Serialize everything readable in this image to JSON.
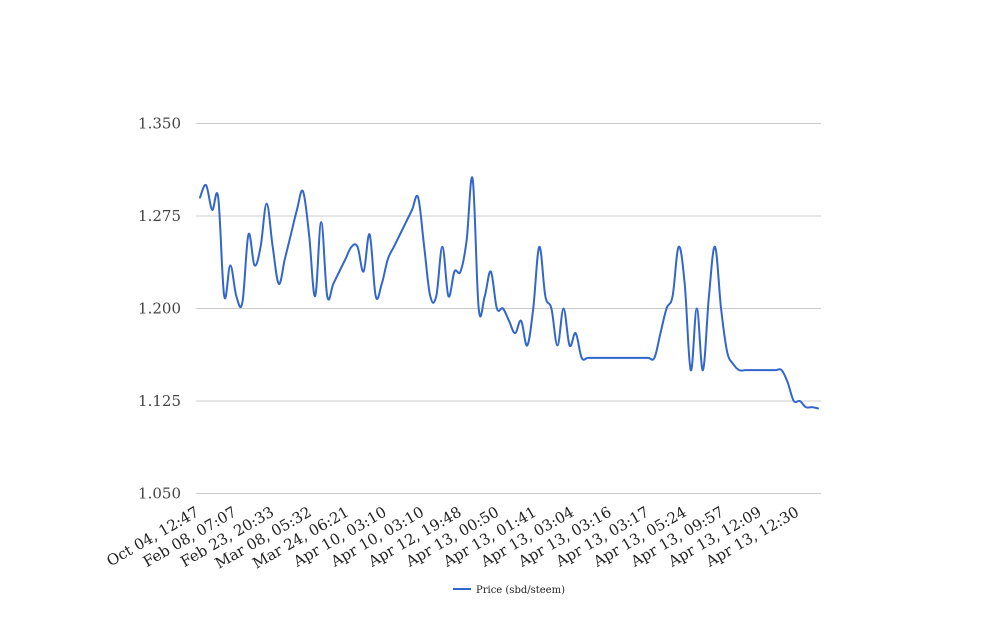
{
  "chart_data": {
    "type": "line",
    "title": "",
    "xlabel": "",
    "ylabel": "",
    "ylim": [
      1.05,
      1.35
    ],
    "yticks": [
      "1.050",
      "1.125",
      "1.200",
      "1.275",
      "1.350"
    ],
    "ytick_values": [
      1.05,
      1.125,
      1.2,
      1.275,
      1.35
    ],
    "grid": true,
    "legend_position": "bottom",
    "line_color": "#3366cc",
    "grid_color": "#cccccc",
    "x_tick_labels": [
      "Oct 04, 12:47",
      "Feb 08, 07:07",
      "Feb 23, 20:33",
      "Mar 08, 05:32",
      "Mar 24, 06:21",
      "Apr 10, 03:10",
      "Apr 10, 03:10",
      "Apr 12, 19:48",
      "Apr 13, 00:50",
      "Apr 13, 01:41",
      "Apr 13, 03:04",
      "Apr 13, 03:16",
      "Apr 13, 03:17",
      "Apr 13, 05:24",
      "Apr 13, 09:57",
      "Apr 13, 12:09",
      "Apr 13, 12:30"
    ],
    "series": [
      {
        "name": "Price (sbd/steem)",
        "values": [
          1.29,
          1.3,
          1.28,
          1.29,
          1.21,
          1.235,
          1.21,
          1.205,
          1.26,
          1.235,
          1.25,
          1.285,
          1.25,
          1.22,
          1.24,
          1.26,
          1.28,
          1.295,
          1.26,
          1.21,
          1.27,
          1.21,
          1.22,
          1.23,
          1.24,
          1.25,
          1.25,
          1.23,
          1.26,
          1.21,
          1.22,
          1.24,
          1.25,
          1.26,
          1.27,
          1.28,
          1.29,
          1.25,
          1.21,
          1.21,
          1.25,
          1.21,
          1.23,
          1.23,
          1.255,
          1.305,
          1.2,
          1.21,
          1.23,
          1.2,
          1.2,
          1.19,
          1.18,
          1.19,
          1.17,
          1.2,
          1.25,
          1.21,
          1.2,
          1.17,
          1.2,
          1.17,
          1.18,
          1.16,
          1.16,
          1.16,
          1.16,
          1.16,
          1.16,
          1.16,
          1.16,
          1.16,
          1.16,
          1.16,
          1.16,
          1.16,
          1.18,
          1.2,
          1.21,
          1.25,
          1.22,
          1.15,
          1.2,
          1.15,
          1.21,
          1.25,
          1.2,
          1.165,
          1.155,
          1.15,
          1.15,
          1.15,
          1.15,
          1.15,
          1.15,
          1.15,
          1.15,
          1.14,
          1.125,
          1.125,
          1.12,
          1.12,
          1.119
        ]
      }
    ]
  }
}
